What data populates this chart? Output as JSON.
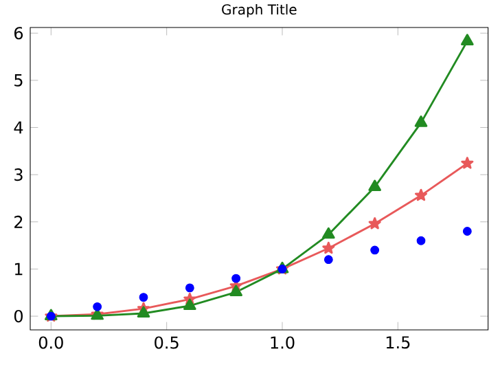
{
  "chart_data": {
    "type": "line",
    "title": "Graph Title",
    "x": [
      0,
      0.2,
      0.4,
      0.6,
      0.8,
      1.0,
      1.2,
      1.4,
      1.6,
      1.8
    ],
    "series": [
      {
        "type": "scatter",
        "color": "#0000ff",
        "marker": "circle",
        "values": [
          0,
          0.2,
          0.4,
          0.6,
          0.8,
          1.0,
          1.2,
          1.4,
          1.6,
          1.8
        ]
      },
      {
        "color": "#e8595a",
        "marker": "star",
        "line_style": "solid",
        "values": [
          0,
          0.04,
          0.16,
          0.36,
          0.64,
          1.0,
          1.44,
          1.96,
          2.56,
          3.24
        ]
      },
      {
        "color": "#228b22",
        "marker": "triangle",
        "line_style": "solid",
        "values": [
          0,
          0.01,
          0.06,
          0.22,
          0.51,
          1.0,
          1.73,
          2.74,
          4.1,
          5.83
        ]
      }
    ],
    "xlim": [
      -0.09,
      1.89
    ],
    "ylim": [
      -0.29,
      6.12
    ],
    "xticks": [
      {
        "value": 0,
        "label": "0.0"
      },
      {
        "value": 0.5,
        "label": "0.5"
      },
      {
        "value": 1.0,
        "label": "1.0"
      },
      {
        "value": 1.5,
        "label": "1.5"
      }
    ],
    "yticks": [
      0,
      1,
      2,
      3,
      4,
      5,
      6
    ]
  }
}
